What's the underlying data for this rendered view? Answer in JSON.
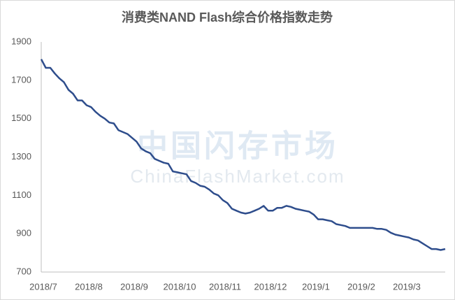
{
  "chart_data": {
    "type": "line",
    "title": "消费类NAND Flash综合价格指数走势",
    "watermark": [
      "中国闪存市场",
      "ChinaFlashMarket.com"
    ],
    "x_labels": [
      "2018/7",
      "2018/8",
      "2018/9",
      "2018/10",
      "2018/11",
      "2018/12",
      "2019/1",
      "2019/2",
      "2019/3"
    ],
    "ylim": [
      700,
      1900
    ],
    "yticks": [
      700,
      900,
      1100,
      1300,
      1500,
      1700,
      1900
    ],
    "grid": false,
    "color": "#2e4d8c",
    "values": [
      1810,
      1765,
      1765,
      1735,
      1710,
      1690,
      1650,
      1630,
      1595,
      1595,
      1570,
      1560,
      1535,
      1515,
      1500,
      1480,
      1475,
      1440,
      1430,
      1420,
      1400,
      1380,
      1345,
      1330,
      1320,
      1290,
      1280,
      1270,
      1265,
      1225,
      1220,
      1215,
      1210,
      1175,
      1165,
      1150,
      1145,
      1130,
      1110,
      1100,
      1075,
      1060,
      1030,
      1020,
      1010,
      1005,
      1010,
      1020,
      1030,
      1045,
      1020,
      1020,
      1035,
      1035,
      1045,
      1040,
      1030,
      1025,
      1020,
      1015,
      1000,
      975,
      975,
      970,
      965,
      950,
      945,
      940,
      930,
      930,
      930,
      930,
      930,
      930,
      925,
      925,
      920,
      905,
      895,
      890,
      885,
      880,
      870,
      865,
      850,
      835,
      820,
      820,
      815,
      820
    ]
  }
}
